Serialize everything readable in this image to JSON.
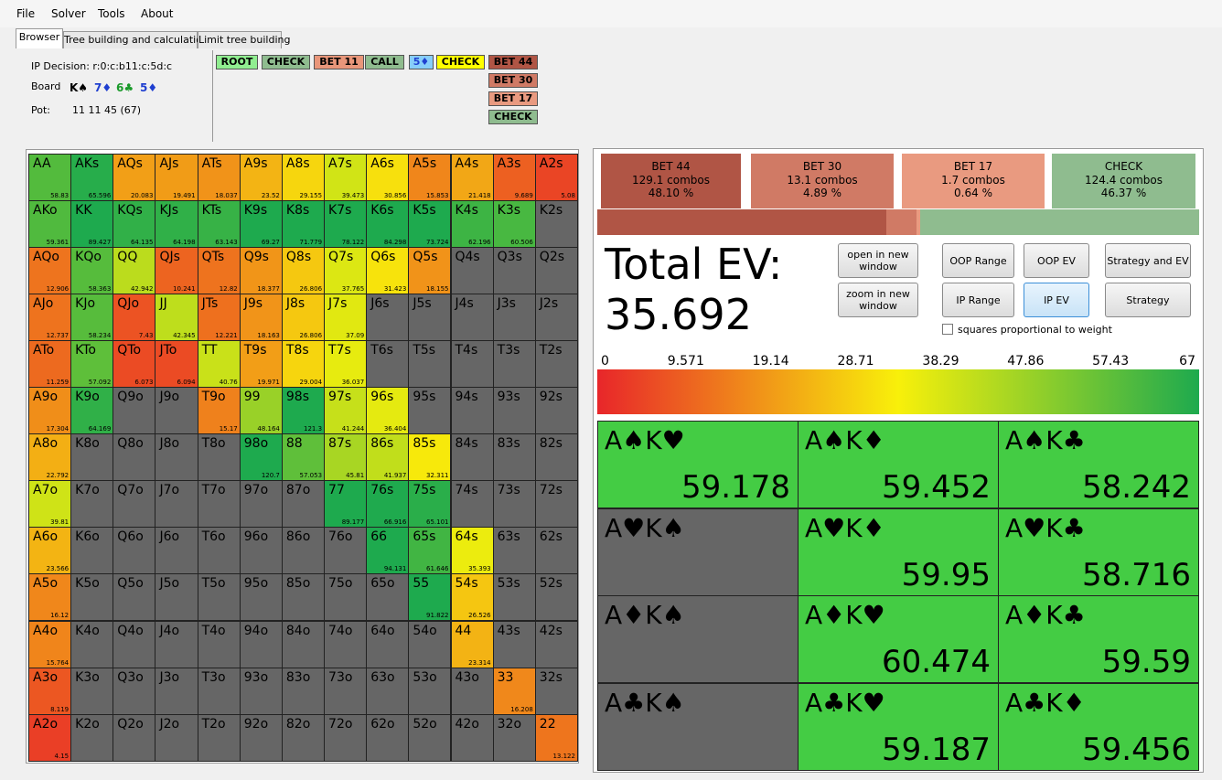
{
  "menu": [
    "File",
    "Solver",
    "Tools",
    "About"
  ],
  "tabs": [
    "Browser",
    "Tree building and calculation",
    "Limit tree building"
  ],
  "info": {
    "decision": "IP Decision: r:0:c:b11:c:5d:c",
    "board_label": "Board",
    "board": [
      {
        "card": "K♠",
        "color": "#000000"
      },
      {
        "card": "7♦",
        "color": "#1f3fd0"
      },
      {
        "card": "6♣",
        "color": "#1a9a2a"
      },
      {
        "card": "5♦",
        "color": "#1f3fd0"
      }
    ],
    "pot_label": "Pot:",
    "pot": "11 11 45 (67)"
  },
  "tree": {
    "path": [
      {
        "label": "ROOT",
        "color": "#90ee90",
        "text": "#000"
      },
      {
        "label": "CHECK",
        "color": "#8fbc8f",
        "text": "#000"
      },
      {
        "label": "BET 11",
        "color": "#e9967a",
        "text": "#000"
      },
      {
        "label": "CALL",
        "color": "#8fbc8f",
        "text": "#000"
      },
      {
        "label": "5♦",
        "color": "#87cefa",
        "text": "#1f3fd0"
      },
      {
        "label": "CHECK",
        "color": "#ffff00",
        "text": "#000"
      }
    ],
    "options": [
      {
        "label": "BET 44",
        "color": "#b05545"
      },
      {
        "label": "BET 30",
        "color": "#d07a65"
      },
      {
        "label": "BET 17",
        "color": "#e99a80"
      },
      {
        "label": "CHECK",
        "color": "#8fbc8f"
      }
    ]
  },
  "range_grid": {
    "labels": [
      [
        "AA",
        "AKs",
        "AQs",
        "AJs",
        "ATs",
        "A9s",
        "A8s",
        "A7s",
        "A6s",
        "A5s",
        "A4s",
        "A3s",
        "A2s"
      ],
      [
        "AKo",
        "KK",
        "KQs",
        "KJs",
        "KTs",
        "K9s",
        "K8s",
        "K7s",
        "K6s",
        "K5s",
        "K4s",
        "K3s",
        "K2s"
      ],
      [
        "AQo",
        "KQo",
        "QQ",
        "QJs",
        "QTs",
        "Q9s",
        "Q8s",
        "Q7s",
        "Q6s",
        "Q5s",
        "Q4s",
        "Q3s",
        "Q2s"
      ],
      [
        "AJo",
        "KJo",
        "QJo",
        "JJ",
        "JTs",
        "J9s",
        "J8s",
        "J7s",
        "J6s",
        "J5s",
        "J4s",
        "J3s",
        "J2s"
      ],
      [
        "ATo",
        "KTo",
        "QTo",
        "JTo",
        "TT",
        "T9s",
        "T8s",
        "T7s",
        "T6s",
        "T5s",
        "T4s",
        "T3s",
        "T2s"
      ],
      [
        "A9o",
        "K9o",
        "Q9o",
        "J9o",
        "T9o",
        "99",
        "98s",
        "97s",
        "96s",
        "95s",
        "94s",
        "93s",
        "92s"
      ],
      [
        "A8o",
        "K8o",
        "Q8o",
        "J8o",
        "T8o",
        "98o",
        "88",
        "87s",
        "86s",
        "85s",
        "84s",
        "83s",
        "82s"
      ],
      [
        "A7o",
        "K7o",
        "Q7o",
        "J7o",
        "T7o",
        "97o",
        "87o",
        "77",
        "76s",
        "75s",
        "74s",
        "73s",
        "72s"
      ],
      [
        "A6o",
        "K6o",
        "Q6o",
        "J6o",
        "T6o",
        "96o",
        "86o",
        "76o",
        "66",
        "65s",
        "64s",
        "63s",
        "62s"
      ],
      [
        "A5o",
        "K5o",
        "Q5o",
        "J5o",
        "T5o",
        "95o",
        "85o",
        "75o",
        "65o",
        "55",
        "54s",
        "53s",
        "52s"
      ],
      [
        "A4o",
        "K4o",
        "Q4o",
        "J4o",
        "T4o",
        "94o",
        "84o",
        "74o",
        "64o",
        "54o",
        "44",
        "43s",
        "42s"
      ],
      [
        "A3o",
        "K3o",
        "Q3o",
        "J3o",
        "T3o",
        "93o",
        "83o",
        "73o",
        "63o",
        "53o",
        "43o",
        "33",
        "32s"
      ],
      [
        "A2o",
        "K2o",
        "Q2o",
        "J2o",
        "T2o",
        "92o",
        "82o",
        "72o",
        "62o",
        "52o",
        "42o",
        "32o",
        "22"
      ]
    ],
    "values": [
      [
        58.83,
        65.596,
        20.083,
        19.491,
        18.037,
        23.52,
        29.155,
        39.473,
        30.856,
        15.853,
        21.418,
        9.689,
        5.08
      ],
      [
        59.361,
        89.427,
        64.135,
        64.198,
        63.143,
        69.27,
        71.779,
        78.122,
        84.298,
        73.724,
        62.196,
        60.506,
        null
      ],
      [
        12.906,
        58.363,
        42.942,
        10.241,
        12.82,
        18.377,
        26.806,
        37.765,
        31.423,
        18.155,
        null,
        null,
        null
      ],
      [
        12.737,
        58.234,
        7.43,
        42.345,
        12.221,
        18.163,
        26.806,
        37.09,
        null,
        null,
        null,
        null,
        null
      ],
      [
        11.259,
        57.092,
        6.073,
        6.094,
        40.76,
        19.971,
        29.004,
        36.037,
        null,
        null,
        null,
        null,
        null
      ],
      [
        17.304,
        64.169,
        null,
        null,
        15.17,
        48.164,
        121.3,
        41.244,
        36.404,
        null,
        null,
        null,
        null
      ],
      [
        22.792,
        null,
        null,
        null,
        null,
        120.7,
        57.053,
        45.81,
        41.937,
        32.311,
        null,
        null,
        null
      ],
      [
        39.81,
        null,
        null,
        null,
        null,
        null,
        null,
        89.177,
        66.916,
        65.101,
        null,
        null,
        null
      ],
      [
        23.566,
        null,
        null,
        null,
        null,
        null,
        null,
        null,
        94.131,
        61.646,
        35.393,
        null,
        null
      ],
      [
        16.12,
        null,
        null,
        null,
        null,
        null,
        null,
        null,
        null,
        91.822,
        26.526,
        null,
        null
      ],
      [
        15.764,
        null,
        null,
        null,
        null,
        null,
        null,
        null,
        null,
        null,
        23.314,
        null,
        null
      ],
      [
        8.119,
        null,
        null,
        null,
        null,
        null,
        null,
        null,
        null,
        null,
        null,
        16.208,
        null
      ],
      [
        4.15,
        null,
        null,
        null,
        null,
        null,
        null,
        null,
        null,
        null,
        null,
        null,
        13.122
      ]
    ]
  },
  "actions": [
    {
      "name": "BET 44",
      "combos": 129.1,
      "combos_label": "129.1 combos",
      "percent": 48.1,
      "percent_label": "48.10 %",
      "color": "#b05545"
    },
    {
      "name": "BET 30",
      "combos": 13.1,
      "combos_label": "13.1 combos",
      "percent": 4.89,
      "percent_label": "4.89 %",
      "color": "#d07a65"
    },
    {
      "name": "BET 17",
      "combos": 1.7,
      "combos_label": "1.7 combos",
      "percent": 0.64,
      "percent_label": "0.64 %",
      "color": "#e99a80"
    },
    {
      "name": "CHECK",
      "combos": 124.4,
      "combos_label": "124.4 combos",
      "percent": 46.37,
      "percent_label": "46.37 %",
      "color": "#8fbc8f"
    }
  ],
  "total_ev": {
    "label": "Total EV:",
    "value": 35.692
  },
  "buttons": [
    "open in new window",
    "zoom in new window",
    "OOP Range",
    "OOP EV",
    "Strategy and EV",
    "IP Range",
    "IP EV",
    "Strategy"
  ],
  "checkbox": "squares proportional to weight",
  "scale": {
    "lim": [
      0,
      67
    ],
    "ticks": [
      0,
      9.571,
      19.14,
      28.71,
      38.29,
      47.86,
      57.43,
      67
    ]
  },
  "combos": [
    {
      "label": "A♠K♥",
      "value": 59.178
    },
    {
      "label": "A♠K♦",
      "value": 59.452
    },
    {
      "label": "A♠K♣",
      "value": 58.242
    },
    {
      "label": "A♥K♠",
      "value": null
    },
    {
      "label": "A♥K♦",
      "value": 59.95
    },
    {
      "label": "A♥K♣",
      "value": 58.716
    },
    {
      "label": "A♦K♠",
      "value": null
    },
    {
      "label": "A♦K♥",
      "value": 60.474
    },
    {
      "label": "A♦K♣",
      "value": 59.59
    },
    {
      "label": "A♣K♠",
      "value": null
    },
    {
      "label": "A♣K♥",
      "value": 59.187
    },
    {
      "label": "A♣K♦",
      "value": 59.456
    }
  ]
}
